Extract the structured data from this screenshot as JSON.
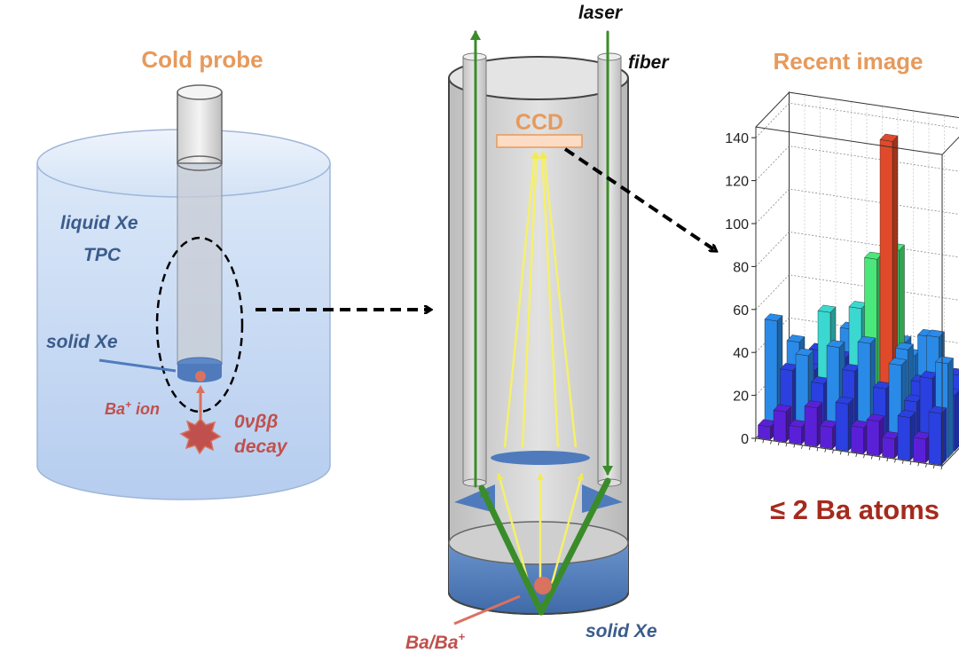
{
  "left_panel": {
    "title": "Cold probe",
    "liquid_label_line1": "liquid Xe",
    "liquid_label_line2": "TPC",
    "solid_label": "solid Xe",
    "ion_label": "Ba",
    "ion_label_sup": "+",
    "ion_label_suffix": " ion",
    "decay_label_line1": "0νββ",
    "decay_label_line2": "decay"
  },
  "middle_panel": {
    "laser_label": "laser",
    "fiber_label": "fiber",
    "ccd_label": "CCD",
    "atom_label": "Ba/Ba",
    "atom_label_sup": "+",
    "solid_label": "solid Xe"
  },
  "right_panel": {
    "title": "Recent image",
    "result_label": "≤ 2 Ba atoms"
  },
  "colors": {
    "accent_orange": "#e69a5c",
    "label_blue": "#3b5c8c",
    "label_red": "#c0504d",
    "result_red": "#a52a1d",
    "laser_green": "#3a8c2a",
    "light_yellow": "#f5f06a"
  },
  "chart_data": {
    "type": "lego3d",
    "z_ticks": [
      "0",
      "20",
      "40",
      "60",
      "80",
      "100",
      "120",
      "140"
    ],
    "zlim": [
      0,
      145
    ],
    "colormap": [
      "#5a20d8",
      "#2a40e0",
      "#2a8ae8",
      "#3ad8d0",
      "#4ae87a",
      "#a8e83a",
      "#e8c83a",
      "#e04a2a"
    ],
    "bars": [
      {
        "x": 0,
        "y": 0,
        "z": 6
      },
      {
        "x": 1,
        "y": 0,
        "z": 14
      },
      {
        "x": 2,
        "y": 0,
        "z": 8
      },
      {
        "x": 3,
        "y": 0,
        "z": 18
      },
      {
        "x": 4,
        "y": 0,
        "z": 10
      },
      {
        "x": 5,
        "y": 0,
        "z": 22
      },
      {
        "x": 6,
        "y": 0,
        "z": 12
      },
      {
        "x": 7,
        "y": 0,
        "z": 16
      },
      {
        "x": 8,
        "y": 0,
        "z": 9
      },
      {
        "x": 9,
        "y": 0,
        "z": 20
      },
      {
        "x": 10,
        "y": 0,
        "z": 11
      },
      {
        "x": 11,
        "y": 0,
        "z": 24
      },
      {
        "x": 0,
        "y": 1,
        "z": 52
      },
      {
        "x": 1,
        "y": 1,
        "z": 30
      },
      {
        "x": 2,
        "y": 1,
        "z": 38
      },
      {
        "x": 3,
        "y": 1,
        "z": 26
      },
      {
        "x": 4,
        "y": 1,
        "z": 44
      },
      {
        "x": 5,
        "y": 1,
        "z": 34
      },
      {
        "x": 6,
        "y": 1,
        "z": 48
      },
      {
        "x": 7,
        "y": 1,
        "z": 28
      },
      {
        "x": 8,
        "y": 1,
        "z": 40
      },
      {
        "x": 9,
        "y": 1,
        "z": 24
      },
      {
        "x": 10,
        "y": 1,
        "z": 36
      },
      {
        "x": 11,
        "y": 1,
        "z": 44
      },
      {
        "x": 0,
        "y": 2,
        "z": 22
      },
      {
        "x": 1,
        "y": 2,
        "z": 40
      },
      {
        "x": 2,
        "y": 2,
        "z": 28
      },
      {
        "x": 3,
        "y": 2,
        "z": 56
      },
      {
        "x": 4,
        "y": 2,
        "z": 36
      },
      {
        "x": 5,
        "y": 2,
        "z": 60
      },
      {
        "x": 6,
        "y": 2,
        "z": 84
      },
      {
        "x": 7,
        "y": 2,
        "z": 140
      },
      {
        "x": 8,
        "y": 2,
        "z": 44
      },
      {
        "x": 9,
        "y": 2,
        "z": 30
      },
      {
        "x": 10,
        "y": 2,
        "z": 52
      },
      {
        "x": 11,
        "y": 2,
        "z": 26
      },
      {
        "x": 0,
        "y": 3,
        "z": 14
      },
      {
        "x": 1,
        "y": 3,
        "z": 26
      },
      {
        "x": 2,
        "y": 3,
        "z": 34
      },
      {
        "x": 3,
        "y": 3,
        "z": 20
      },
      {
        "x": 4,
        "y": 3,
        "z": 46
      },
      {
        "x": 5,
        "y": 3,
        "z": 30
      },
      {
        "x": 6,
        "y": 3,
        "z": 58
      },
      {
        "x": 7,
        "y": 3,
        "z": 86
      },
      {
        "x": 8,
        "y": 3,
        "z": 38
      },
      {
        "x": 9,
        "y": 3,
        "z": 48
      },
      {
        "x": 10,
        "y": 3,
        "z": 18
      },
      {
        "x": 11,
        "y": 3,
        "z": 32
      },
      {
        "x": 0,
        "y": 4,
        "z": 8
      },
      {
        "x": 1,
        "y": 4,
        "z": 16
      },
      {
        "x": 2,
        "y": 4,
        "z": 12
      },
      {
        "x": 3,
        "y": 4,
        "z": 24
      },
      {
        "x": 4,
        "y": 4,
        "z": 18
      },
      {
        "x": 5,
        "y": 4,
        "z": 28
      },
      {
        "x": 6,
        "y": 4,
        "z": 22
      },
      {
        "x": 7,
        "y": 4,
        "z": 40
      },
      {
        "x": 8,
        "y": 4,
        "z": 16
      },
      {
        "x": 9,
        "y": 4,
        "z": 26
      },
      {
        "x": 10,
        "y": 4,
        "z": 12
      },
      {
        "x": 11,
        "y": 4,
        "z": 20
      }
    ]
  }
}
